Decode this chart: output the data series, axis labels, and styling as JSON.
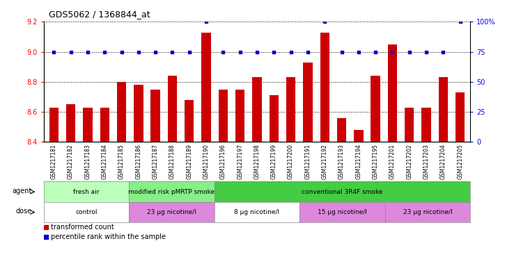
{
  "title": "GDS5062 / 1368844_at",
  "samples": [
    "GSM1217181",
    "GSM1217182",
    "GSM1217183",
    "GSM1217184",
    "GSM1217185",
    "GSM1217186",
    "GSM1217187",
    "GSM1217188",
    "GSM1217189",
    "GSM1217190",
    "GSM1217196",
    "GSM1217197",
    "GSM1217198",
    "GSM1217199",
    "GSM1217200",
    "GSM1217191",
    "GSM1217192",
    "GSM1217193",
    "GSM1217194",
    "GSM1217195",
    "GSM1217201",
    "GSM1217202",
    "GSM1217203",
    "GSM1217204",
    "GSM1217205"
  ],
  "red_values": [
    8.63,
    8.65,
    8.63,
    8.63,
    8.8,
    8.78,
    8.75,
    8.84,
    8.68,
    9.13,
    8.75,
    8.75,
    8.83,
    8.71,
    8.83,
    8.93,
    9.13,
    8.56,
    8.48,
    8.84,
    9.05,
    8.63,
    8.63,
    8.83,
    8.73
  ],
  "blue_values": [
    75,
    75,
    75,
    75,
    75,
    75,
    75,
    75,
    75,
    100,
    75,
    75,
    75,
    75,
    75,
    75,
    100,
    75,
    75,
    75,
    75,
    75,
    75,
    75,
    100
  ],
  "ylim_left": [
    8.4,
    9.2
  ],
  "ylim_right": [
    0,
    100
  ],
  "yticks_left": [
    8.4,
    8.6,
    8.8,
    9.0,
    9.2
  ],
  "yticks_right": [
    0,
    25,
    50,
    75,
    100
  ],
  "bar_color": "#cc0000",
  "dot_color": "#0000cc",
  "agent_groups": [
    {
      "label": "fresh air",
      "start": 0,
      "end": 5,
      "color": "#bbffbb"
    },
    {
      "label": "modified risk pMRTP smoke",
      "start": 5,
      "end": 10,
      "color": "#88ee88"
    },
    {
      "label": "conventional 3R4F smoke",
      "start": 10,
      "end": 25,
      "color": "#44cc44"
    }
  ],
  "dose_groups": [
    {
      "label": "control",
      "start": 0,
      "end": 5,
      "color": "#ffffff"
    },
    {
      "label": "23 μg nicotine/l",
      "start": 5,
      "end": 10,
      "color": "#dd88dd"
    },
    {
      "label": "8 μg nicotine/l",
      "start": 10,
      "end": 15,
      "color": "#ffffff"
    },
    {
      "label": "15 μg nicotine/l",
      "start": 15,
      "end": 20,
      "color": "#dd88dd"
    },
    {
      "label": "23 μg nicotine/l",
      "start": 20,
      "end": 25,
      "color": "#dd88dd"
    }
  ],
  "legend_items": [
    {
      "label": "transformed count",
      "color": "#cc0000"
    },
    {
      "label": "percentile rank within the sample",
      "color": "#0000cc"
    }
  ],
  "fig_width": 7.38,
  "fig_height": 3.93,
  "dpi": 100
}
